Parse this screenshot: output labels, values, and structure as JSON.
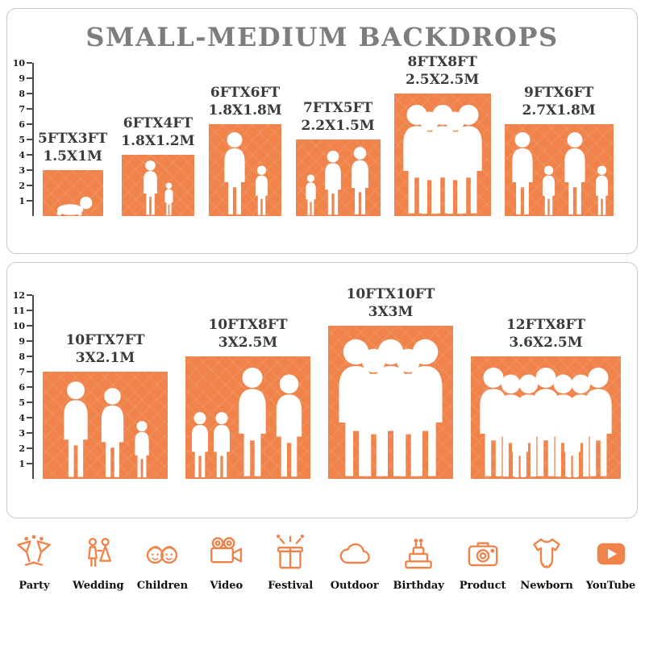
{
  "title": "SMALL-MEDIUM BACKDROPS",
  "accent_color": "#EF834A",
  "silhouette_color": "#FFFFFF",
  "chart_data": [
    {
      "type": "bar",
      "panel": "small-medium-top",
      "axis_ticks": [
        1,
        2,
        3,
        4,
        5,
        6,
        7,
        8,
        9,
        10
      ],
      "bars": [
        {
          "size_ft": "5FTX3FT",
          "size_m": "1.5X1M",
          "width_ft": 5,
          "height_ft": 3,
          "figures": [
            "baby"
          ]
        },
        {
          "size_ft": "6FTX4FT",
          "size_m": "1.8X1.2M",
          "width_ft": 6,
          "height_ft": 4,
          "figures": [
            "adult",
            "child"
          ]
        },
        {
          "size_ft": "6FTX6FT",
          "size_m": "1.8X1.8M",
          "width_ft": 6,
          "height_ft": 6,
          "figures": [
            "adult",
            "child"
          ]
        },
        {
          "size_ft": "7FTX5FT",
          "size_m": "2.2X1.5M",
          "width_ft": 7,
          "height_ft": 5,
          "figures": [
            "child",
            "adult",
            "adult"
          ]
        },
        {
          "size_ft": "8FTX8FT",
          "size_m": "2.5X2.5M",
          "width_ft": 8,
          "height_ft": 8,
          "figures": [
            "adult",
            "adult",
            "adult",
            "adult",
            "adult"
          ]
        },
        {
          "size_ft": "9FTX6FT",
          "size_m": "2.7X1.8M",
          "width_ft": 9,
          "height_ft": 6,
          "figures": [
            "adult",
            "child",
            "adult",
            "child"
          ]
        }
      ]
    },
    {
      "type": "bar",
      "panel": "small-medium-bottom",
      "axis_ticks": [
        1,
        2,
        3,
        4,
        5,
        6,
        7,
        8,
        9,
        10,
        11,
        12
      ],
      "bars": [
        {
          "size_ft": "10FTX7FT",
          "size_m": "3X2.1M",
          "width_ft": 10,
          "height_ft": 7,
          "figures": [
            "adult",
            "adult",
            "child"
          ]
        },
        {
          "size_ft": "10FTX8FT",
          "size_m": "3X2.5M",
          "width_ft": 10,
          "height_ft": 8,
          "figures": [
            "child",
            "child",
            "adult",
            "adult"
          ]
        },
        {
          "size_ft": "10FTX10FT",
          "size_m": "3X3M",
          "width_ft": 10,
          "height_ft": 10,
          "figures": [
            "adult",
            "adult",
            "adult",
            "adult",
            "adult"
          ]
        },
        {
          "size_ft": "12FTX8FT",
          "size_m": "3.6X2.5M",
          "width_ft": 12,
          "height_ft": 8,
          "figures": [
            "adult",
            "adult",
            "child",
            "adult",
            "adult",
            "adult",
            "child",
            "adult",
            "adult"
          ]
        }
      ]
    }
  ],
  "categories": [
    {
      "label": "Party",
      "icon": "party-icon"
    },
    {
      "label": "Wedding",
      "icon": "wedding-icon"
    },
    {
      "label": "Children",
      "icon": "children-icon"
    },
    {
      "label": "Video",
      "icon": "video-icon"
    },
    {
      "label": "Festival",
      "icon": "festival-icon"
    },
    {
      "label": "Outdoor",
      "icon": "outdoor-icon"
    },
    {
      "label": "Birthday",
      "icon": "birthday-icon"
    },
    {
      "label": "Product",
      "icon": "product-icon"
    },
    {
      "label": "Newborn",
      "icon": "newborn-icon"
    },
    {
      "label": "YouTube",
      "icon": "youtube-icon"
    }
  ]
}
